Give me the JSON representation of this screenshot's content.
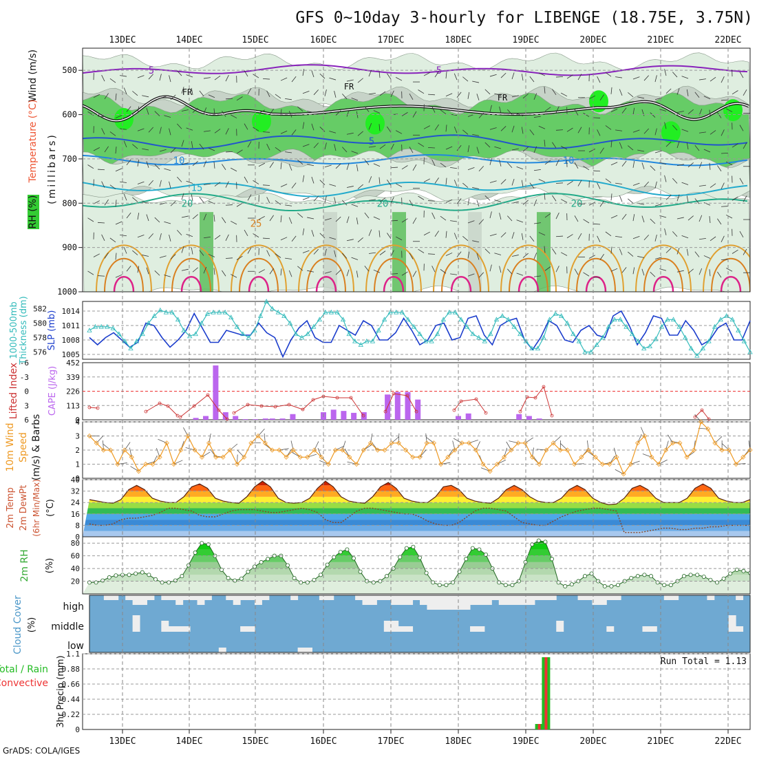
{
  "header": {
    "title": "GFS 0~10day 3-hourly for LIBENGE (18.75E, 3.75N)",
    "credit": "GrADS: COLA/IGES"
  },
  "days": [
    "13DEC",
    "14DEC",
    "15DEC",
    "16DEC",
    "17DEC",
    "18DEC",
    "19DEC",
    "20DEC",
    "21DEC",
    "22DEC"
  ],
  "colors": {
    "grid": "#999999",
    "rh_green": "#33cc33",
    "rh_light": "#dfeee0",
    "rh_gray": "#c7d3c8",
    "slp_line": "#1a3ccc",
    "thickness_line": "#33bbbb",
    "lifted_line": "#cc3333",
    "cape_bar": "#bb66ee",
    "wind_line": "#ee9922",
    "cloud_bg": "#6fa9d2",
    "cloud_fill": "#eeeeee",
    "precip_total": "#22bb22",
    "precip_conv": "#ee3333"
  },
  "labels": {
    "panel1_wind": "Wind (m/s)",
    "panel1_temp": "Temperature (°C)",
    "panel1_rh": "RH (%)",
    "panel1_units": "(millibars)",
    "freeze": "FR",
    "thickness_title": "1000-500mb",
    "thickness_sub": "Thickness (dm)",
    "slp": "SLP (mb)",
    "lifted": "Lifted Index",
    "cape": "CAPE (J/kg)",
    "wind10": "10m Wind",
    "speed": "Speed",
    "barbs": "(m/s) & Barbs",
    "temp2m": "2m Temp",
    "dewpt": "2m DewPt",
    "minmax": "(6hr Min/Max)",
    "degc": "(°C)",
    "rh2m": "2m RH",
    "pct": "(%)",
    "cloud": "Cloud Cover",
    "cloud_pct": "(%)",
    "cloud_high": "high",
    "cloud_middle": "middle",
    "cloud_low": "low",
    "precip_total_label": "Total / Rain",
    "precip_conv_label": "Convective",
    "precip_axis": "3hr Precip (mm)",
    "run_total": "Run Total = 1.13"
  },
  "chart_data": [
    {
      "type": "heatmap",
      "panel": "upper-air RH, temperature and wind cross-section",
      "y_ticks": [
        "500",
        "600",
        "700",
        "800",
        "900",
        "1000"
      ],
      "ylim": [
        1000,
        450
      ],
      "temperature_contours": [
        {
          "label": "5",
          "approx_mb": 500
        },
        {
          "label": "5",
          "approx_mb": 660
        },
        {
          "label": "10",
          "approx_mb": 700
        },
        {
          "label": "15",
          "approx_mb": 765
        },
        {
          "label": "20",
          "approx_mb": 800
        },
        {
          "label": "25",
          "approx_mb": 850
        }
      ],
      "freezing_level_mb_approx": 590,
      "rh_contour_labels": [
        "30",
        "70",
        "90"
      ]
    },
    {
      "type": "line",
      "panel": "thickness and SLP",
      "left_axis": {
        "label": "Thickness (dm)",
        "ticks": [
          "576",
          "578",
          "580",
          "582"
        ],
        "ylim": [
          575,
          583
        ]
      },
      "right_axis": {
        "label": "SLP (mb)",
        "ticks": [
          "1005",
          "1008",
          "1011",
          "1014"
        ],
        "ylim": [
          1004,
          1016
        ]
      },
      "series": [
        {
          "name": "SLP",
          "axis": "right",
          "values": [
            1008.5,
            1007,
            1008.5,
            1009.5,
            1008,
            1006.5,
            1007.5,
            1011.5,
            1011,
            1008.5,
            1006.5,
            1008,
            1010,
            1013.5,
            1010.5,
            1007.5,
            1007.5,
            1010,
            1009.5,
            1009,
            1009,
            1011.5,
            1009.5,
            1008.5,
            1004.5,
            1008,
            1010.5,
            1012,
            1008.5,
            1007.5,
            1007.5,
            1011,
            1010,
            1009,
            1012,
            1011,
            1008,
            1008,
            1009.5,
            1012.5,
            1010,
            1007,
            1008,
            1011,
            1011.5,
            1008,
            1008.5,
            1012.5,
            1013,
            1009,
            1007,
            1011,
            1012,
            1012.5,
            1008,
            1006,
            1008.5,
            1012,
            1011,
            1008,
            1007.5,
            1010,
            1011,
            1009,
            1008.5,
            1013,
            1014,
            1011,
            1007,
            1009.5,
            1013,
            1012.5,
            1009,
            1009,
            1012,
            1010,
            1007,
            1008,
            1010.5,
            1011.5,
            1008,
            1008,
            1012
          ]
        },
        {
          "name": "Thickness",
          "axis": "left",
          "values": [
            579,
            579.5,
            579.5,
            579.5,
            579.3,
            578.5,
            577.5,
            576.5,
            577.5,
            578.5,
            580,
            581,
            581.8,
            581.5,
            581.5,
            580.5,
            579,
            578.2,
            578.5,
            580,
            581.3,
            581.5,
            581.5,
            581.5,
            580.8,
            579.5,
            578.5,
            578,
            579,
            581,
            583,
            582,
            581.5,
            581,
            580,
            578.5,
            578,
            578.5,
            579.5,
            580.5,
            581.5,
            581.5,
            581.5,
            580.5,
            578.5,
            577.5,
            577,
            577.5,
            577.5,
            579,
            580.5,
            581.5,
            581.5,
            581.5,
            580.5,
            579.5,
            578.5,
            577.5,
            577.5,
            578.5,
            580.5,
            581.5,
            581.5,
            580.5,
            579.5,
            578.5,
            578,
            577.5,
            578.5,
            580.5,
            581,
            580.5,
            579.5,
            578.5,
            577.5,
            576.5,
            576.5,
            578,
            580.5,
            581.3,
            581,
            580,
            578.5,
            577.5,
            576,
            576,
            577,
            578,
            579.5,
            580.5,
            580.5,
            579.5,
            578.5,
            577.5,
            576.5,
            576.8,
            577.8,
            579.5,
            580.5,
            580.5,
            579.5,
            578,
            576.5,
            575.5,
            576.5,
            577.5,
            579.5,
            580.5,
            581,
            580.5,
            579,
            577.5,
            576
          ]
        }
      ]
    },
    {
      "type": "bar",
      "panel": "Lifted Index and CAPE",
      "left_axis": {
        "label": "Lifted Index",
        "ticks": [
          "-6",
          "-3",
          "0",
          "3",
          "6"
        ],
        "ylim": [
          6,
          -6
        ]
      },
      "right_axis": {
        "label": "CAPE (J/kg)",
        "ticks": [
          "0",
          "113",
          "226",
          "339",
          "452"
        ],
        "ylim": [
          0,
          452
        ]
      },
      "cape_values": [
        [
          14.1,
          15
        ],
        [
          14.25,
          30
        ],
        [
          14.4,
          430
        ],
        [
          14.55,
          60
        ],
        [
          14.7,
          30
        ],
        [
          14.85,
          5
        ],
        [
          15.0,
          5
        ],
        [
          15.15,
          10
        ],
        [
          15.25,
          10
        ],
        [
          15.4,
          10
        ],
        [
          15.55,
          45
        ],
        [
          16.0,
          60
        ],
        [
          16.15,
          80
        ],
        [
          16.3,
          70
        ],
        [
          16.45,
          55
        ],
        [
          16.6,
          60
        ],
        [
          16.95,
          200
        ],
        [
          17.1,
          220
        ],
        [
          17.25,
          220
        ],
        [
          17.4,
          160
        ],
        [
          18.0,
          30
        ],
        [
          18.15,
          50
        ],
        [
          18.9,
          45
        ],
        [
          19.05,
          30
        ],
        [
          19.2,
          10
        ]
      ]
    },
    {
      "type": "line",
      "panel": "10m wind speed",
      "ylabel": "(m/s)",
      "ticks": [
        "0",
        "1",
        "2",
        "3",
        "4"
      ],
      "ylim": [
        0,
        4
      ],
      "series": [
        {
          "name": "Speed",
          "values": [
            3,
            2.5,
            2,
            2,
            1,
            2,
            1.5,
            0.5,
            1,
            1,
            1.5,
            2.5,
            1,
            2,
            3,
            2,
            1.5,
            2.5,
            1.5,
            1.5,
            2,
            1,
            1.5,
            2.5,
            3,
            2.5,
            2,
            2,
            1.5,
            2,
            1.5,
            1.5,
            2,
            1.5,
            1,
            2,
            2,
            1.5,
            1,
            2,
            2.5,
            2,
            2,
            2.5,
            2.5,
            2,
            1.5,
            1.5,
            2.5,
            2.5,
            1,
            1.5,
            2,
            2.5,
            2.5,
            2,
            1,
            0.5,
            1,
            1.5,
            2,
            2.5,
            2.5,
            1.5,
            1,
            2,
            2.5,
            2,
            2,
            1,
            1.5,
            2,
            1.5,
            1,
            1,
            1.5,
            0.3,
            1,
            2.5,
            3,
            1.5,
            1,
            2,
            2.5,
            2.5,
            1.5,
            2,
            4,
            3.5,
            2.5,
            2,
            2,
            1,
            1.5,
            2
          ]
        }
      ]
    },
    {
      "type": "area",
      "panel": "2m temperature and dewpoint",
      "ylabel": "(°C)",
      "ticks": [
        "0",
        "8",
        "16",
        "24",
        "32",
        "40"
      ],
      "ylim": [
        0,
        40
      ],
      "series": [
        {
          "name": "2m Temp",
          "values": [
            26,
            25,
            24,
            23.5,
            26,
            33,
            36,
            33,
            27,
            25,
            24,
            24,
            28,
            35,
            37,
            34,
            27,
            25,
            24,
            23.5,
            28,
            35,
            39,
            35,
            27,
            24,
            23.5,
            24,
            27,
            34,
            39,
            35,
            28,
            25,
            24,
            23.5,
            28,
            35,
            38,
            34,
            27,
            25,
            24,
            24,
            28,
            35,
            36,
            33,
            27,
            25,
            24,
            23.5,
            27,
            33,
            36,
            33,
            28,
            25,
            24,
            24,
            27,
            33,
            36,
            33,
            27,
            24,
            22.5,
            23,
            27,
            34,
            36,
            33,
            27,
            24,
            24,
            24,
            27,
            34,
            37,
            34,
            27,
            25,
            24,
            24,
            26
          ]
        },
        {
          "name": "2m DewPt",
          "values": [
            9,
            8,
            8,
            9,
            12,
            13,
            13,
            14,
            15,
            17,
            20,
            20,
            19,
            18,
            15,
            14,
            14,
            16,
            18,
            19,
            19,
            19,
            18,
            17,
            17,
            18,
            19,
            20,
            19,
            17,
            12,
            10,
            10,
            14,
            18,
            20,
            20,
            19,
            18,
            17,
            16,
            16,
            14,
            11,
            9,
            8,
            8,
            10,
            14,
            18,
            20,
            20,
            19,
            18,
            14,
            10,
            9,
            8,
            8,
            11,
            14,
            16,
            18,
            19,
            20,
            20,
            19,
            18,
            3,
            3,
            3,
            4,
            5,
            6,
            6,
            5,
            5,
            6,
            6,
            7,
            7,
            8,
            8,
            8,
            8
          ]
        }
      ]
    },
    {
      "type": "line",
      "panel": "2m relative humidity",
      "ylabel": "(%)",
      "ticks": [
        "20",
        "40",
        "60",
        "80"
      ],
      "ylim": [
        0,
        90
      ],
      "series": [
        {
          "name": "2m RH",
          "values": [
            18,
            18,
            21,
            26,
            29,
            30,
            30,
            32,
            34,
            30,
            23,
            18,
            18,
            21,
            28,
            45,
            65,
            80,
            78,
            60,
            38,
            25,
            21,
            24,
            35,
            43,
            50,
            55,
            60,
            60,
            45,
            25,
            18,
            18,
            22,
            30,
            46,
            58,
            66,
            70,
            56,
            35,
            20,
            18,
            20,
            28,
            40,
            58,
            72,
            74,
            57,
            33,
            18,
            14,
            14,
            18,
            35,
            55,
            72,
            70,
            62,
            40,
            18,
            14,
            14,
            20,
            50,
            78,
            84,
            82,
            55,
            18,
            12,
            15,
            20,
            28,
            32,
            20,
            12,
            12,
            14,
            20,
            25,
            28,
            30,
            28,
            18,
            14,
            14,
            20,
            28,
            30,
            30,
            27,
            22,
            18,
            24,
            32,
            38,
            36,
            33
          ]
        }
      ]
    },
    {
      "type": "bar",
      "panel": "cloud cover",
      "categories": [
        "high",
        "middle",
        "low"
      ]
    },
    {
      "type": "bar",
      "panel": "3hr precipitation",
      "ylabel": "3hr Precip (mm)",
      "ticks": [
        "0",
        "0.22",
        "0.44",
        "0.66",
        "0.88",
        "1.1"
      ],
      "ylim": [
        0,
        1.1
      ],
      "series": [
        {
          "name": "Total / Rain",
          "points": [
            [
              19.2,
              0.08
            ],
            [
              19.3,
              1.05
            ]
          ]
        },
        {
          "name": "Convective",
          "points": [
            [
              19.2,
              0.08
            ],
            [
              19.3,
              1.05
            ]
          ]
        }
      ],
      "run_total": 1.13
    }
  ]
}
